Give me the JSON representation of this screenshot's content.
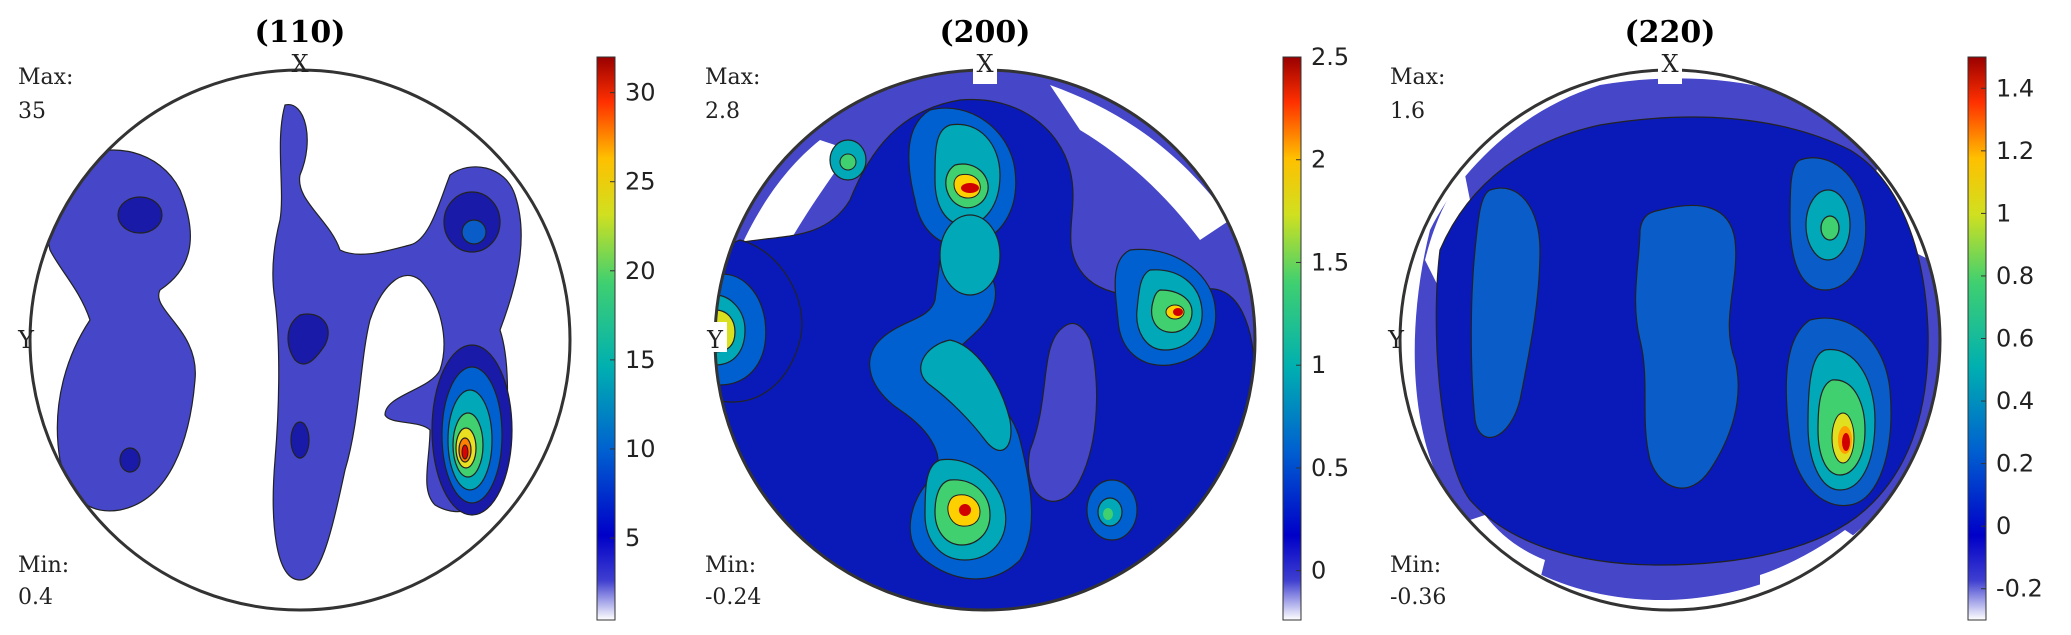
{
  "chart_data": [
    {
      "type": "pole-figure",
      "title": "(110)",
      "max_label": "Max:",
      "max_value": "35",
      "min_label": "Min:",
      "min_value": "0.4",
      "axis_top": "X",
      "axis_left": "Y",
      "colorbar": {
        "min": 0.4,
        "max": 32,
        "ticks": [
          5,
          10,
          15,
          20,
          25,
          30
        ]
      }
    },
    {
      "type": "pole-figure",
      "title": "(200)",
      "max_label": "Max:",
      "max_value": "2.8",
      "min_label": "Min:",
      "min_value": "-0.24",
      "axis_top": "X",
      "axis_left": "Y",
      "colorbar": {
        "min": -0.24,
        "max": 2.5,
        "ticks": [
          0,
          0.5,
          1,
          1.5,
          2,
          2.5
        ]
      }
    },
    {
      "type": "pole-figure",
      "title": "(220)",
      "max_label": "Max:",
      "max_value": "1.6",
      "min_label": "Min:",
      "min_value": "-0.36",
      "axis_top": "X",
      "axis_left": "Y",
      "colorbar": {
        "min": -0.3,
        "max": 1.5,
        "ticks": [
          -0.2,
          0,
          0.2,
          0.4,
          0.6,
          0.8,
          1,
          1.2,
          1.4
        ]
      }
    }
  ]
}
